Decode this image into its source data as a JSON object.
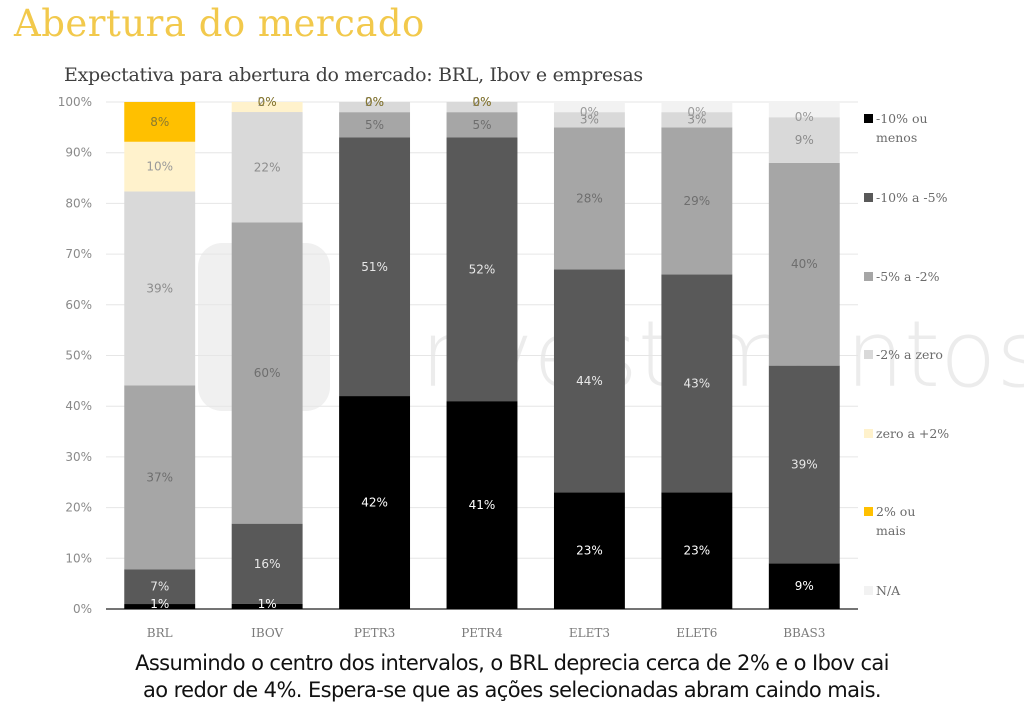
{
  "page": {
    "title": "Abertura do mercado",
    "caption_line1": "Assumindo o centro dos intervalos, o BRL deprecia cerca de 2% e o Ibov cai",
    "caption_line2": "ao redor de 4%. Espera-se que as ações selecionadas abram caindo mais.",
    "watermark": "investimentos"
  },
  "chart_data": {
    "type": "bar",
    "stacked": true,
    "title": "Expectativa para abertura do mercado: BRL, Ibov e empresas",
    "xlabel": "",
    "ylabel": "",
    "ylim": [
      0,
      100
    ],
    "yticks": [
      "0%",
      "10%",
      "20%",
      "30%",
      "40%",
      "50%",
      "60%",
      "70%",
      "80%",
      "90%",
      "100%"
    ],
    "grid": true,
    "legend_position": "right",
    "categories": [
      "BRL",
      "IBOV",
      "PETR3",
      "PETR4",
      "ELET3",
      "ELET6",
      "BBAS3"
    ],
    "series": [
      {
        "name": "-10% ou menos",
        "color": "#000000",
        "label_color": "#ffffff",
        "values": [
          1,
          1,
          42,
          41,
          23,
          23,
          9
        ]
      },
      {
        "name": "-10% a -5%",
        "color": "#595959",
        "label_color": "#e8e8e8",
        "values": [
          7,
          16,
          51,
          52,
          44,
          43,
          39
        ]
      },
      {
        "name": "-5% a -2%",
        "color": "#a6a6a6",
        "label_color": "#6e6e6e",
        "values": [
          37,
          60,
          5,
          5,
          28,
          29,
          40
        ]
      },
      {
        "name": "-2% a zero",
        "color": "#d9d9d9",
        "label_color": "#8c8c8c",
        "values": [
          39,
          22,
          2,
          2,
          3,
          3,
          9
        ]
      },
      {
        "name": "zero a +2%",
        "color": "#fff2cc",
        "label_color": "#9a9a9a",
        "values": [
          10,
          2,
          0,
          0,
          0,
          0,
          0
        ]
      },
      {
        "name": "2% ou mais",
        "color": "#ffc000",
        "label_color": "#8a7a30",
        "values": [
          8,
          0,
          0,
          0,
          0,
          0,
          0
        ]
      },
      {
        "name": "N/A",
        "color": "#f2f2f2",
        "label_color": "#9a9a9a",
        "values": [
          0,
          0,
          0,
          0,
          2,
          2,
          3
        ]
      }
    ],
    "data_labels": [
      [
        "1%",
        "7%",
        "37%",
        "39%",
        "10%",
        "8%",
        null
      ],
      [
        "1%",
        "16%",
        "60%",
        "22%",
        "2%",
        "0%",
        null
      ],
      [
        "42%",
        "51%",
        "5%",
        "2%",
        "0%",
        "0%",
        null
      ],
      [
        "41%",
        "52%",
        "5%",
        "2%",
        "0%",
        "0%",
        null
      ],
      [
        "23%",
        "44%",
        "28%",
        "3%",
        "0%",
        null,
        null
      ],
      [
        "23%",
        "43%",
        "29%",
        "3%",
        "0%",
        null,
        null
      ],
      [
        "9%",
        "39%",
        "40%",
        "9%",
        "0%",
        null,
        null
      ]
    ],
    "legend": [
      "-10% ou menos",
      "-10% a -5%",
      "-5% a -2%",
      "-2% a zero",
      "zero a +2%",
      "2% ou mais",
      "N/A"
    ]
  }
}
